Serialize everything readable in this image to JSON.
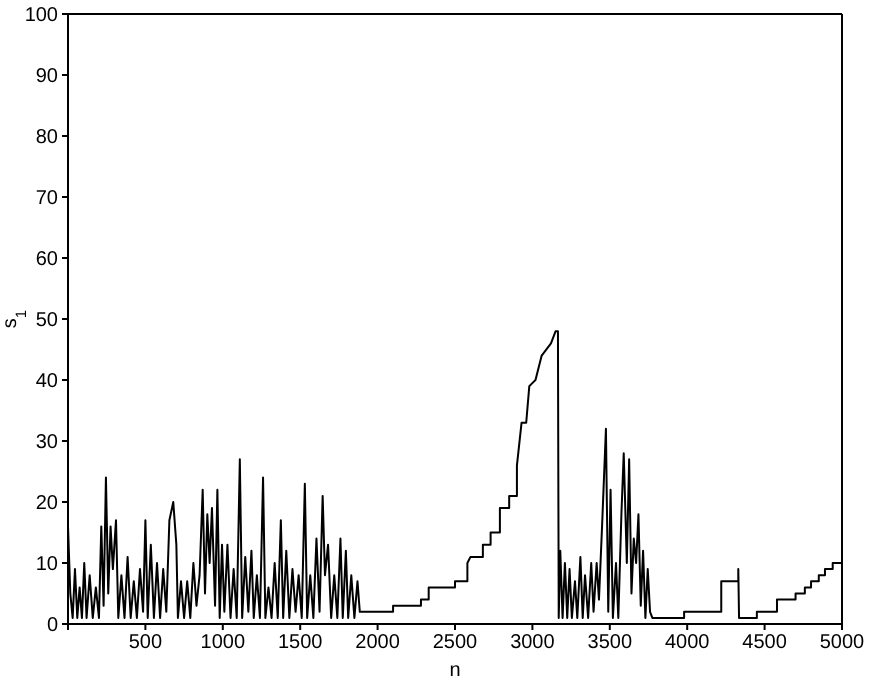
{
  "chart_data": {
    "type": "line",
    "xlabel": "n",
    "ylabel": "s$_{1}$",
    "xlim": [
      0,
      5000
    ],
    "xticks": [
      {
        "value": 0,
        "label": null
      },
      500,
      1000,
      1500,
      2000,
      2500,
      3000,
      3500,
      4000,
      4500,
      5000
    ],
    "ylim": [
      0,
      100
    ],
    "yticks": [
      0,
      10,
      20,
      30,
      40,
      50,
      60,
      70,
      80,
      90,
      100
    ],
    "marker": "none",
    "line_style": "solid",
    "series": [
      {
        "color": "#000000",
        "x": [
          0,
          15,
          30,
          45,
          60,
          75,
          90,
          105,
          120,
          140,
          160,
          180,
          200,
          215,
          230,
          245,
          260,
          275,
          290,
          310,
          325,
          345,
          365,
          385,
          405,
          425,
          445,
          465,
          485,
          500,
          515,
          535,
          555,
          575,
          595,
          615,
          635,
          655,
          680,
          700,
          710,
          730,
          750,
          770,
          790,
          810,
          830,
          850,
          870,
          885,
          900,
          915,
          930,
          950,
          965,
          980,
          995,
          1010,
          1030,
          1050,
          1070,
          1090,
          1110,
          1125,
          1145,
          1165,
          1185,
          1200,
          1220,
          1240,
          1260,
          1275,
          1295,
          1315,
          1335,
          1355,
          1375,
          1390,
          1410,
          1430,
          1450,
          1470,
          1490,
          1510,
          1530,
          1545,
          1565,
          1585,
          1605,
          1625,
          1645,
          1660,
          1680,
          1700,
          1720,
          1740,
          1760,
          1775,
          1795,
          1810,
          1830,
          1850,
          1870,
          1885,
          2100,
          2100,
          2280,
          2280,
          2330,
          2330,
          2500,
          2500,
          2580,
          2580,
          2600,
          2680,
          2680,
          2730,
          2730,
          2790,
          2790,
          2850,
          2850,
          2900,
          2900,
          2930,
          2960,
          2980,
          3020,
          3060,
          3120,
          3150,
          3165,
          3170,
          3180,
          3195,
          3210,
          3225,
          3240,
          3255,
          3275,
          3290,
          3310,
          3325,
          3340,
          3360,
          3380,
          3395,
          3415,
          3430,
          3450,
          3475,
          3490,
          3505,
          3520,
          3540,
          3555,
          3575,
          3590,
          3610,
          3625,
          3640,
          3655,
          3670,
          3685,
          3700,
          3715,
          3730,
          3745,
          3760,
          3775,
          3790,
          3980,
          3980,
          4220,
          4220,
          4330,
          4330,
          4335,
          4450,
          4450,
          4580,
          4580,
          4700,
          4700,
          4760,
          4760,
          4800,
          4800,
          4850,
          4850,
          4890,
          4890,
          4940,
          4940,
          5000
        ],
        "values": [
          16,
          5,
          1,
          9,
          1,
          6,
          1,
          10,
          1,
          8,
          1,
          6,
          1,
          16,
          3,
          24,
          5,
          16,
          9,
          17,
          1,
          8,
          1,
          11,
          1,
          7,
          1,
          9,
          2,
          17,
          1,
          13,
          1,
          10,
          1,
          9,
          2,
          17,
          20,
          13,
          1,
          7,
          1,
          7,
          1,
          10,
          3,
          8,
          22,
          5,
          18,
          10,
          19,
          3,
          22,
          1,
          13,
          2,
          13,
          1,
          9,
          1,
          27,
          1,
          11,
          2,
          12,
          1,
          8,
          1,
          24,
          1,
          6,
          1,
          10,
          1,
          17,
          1,
          12,
          1,
          9,
          2,
          8,
          1,
          23,
          1,
          8,
          1,
          14,
          2,
          21,
          8,
          13,
          1,
          8,
          1,
          14,
          1,
          12,
          1,
          8,
          1,
          7,
          2,
          2,
          3,
          3,
          4,
          4,
          6,
          6,
          7,
          7,
          10,
          11,
          11,
          13,
          13,
          15,
          15,
          19,
          19,
          21,
          21,
          26,
          33,
          33,
          39,
          40,
          44,
          46,
          48,
          48,
          1,
          12,
          1,
          10,
          1,
          9,
          1,
          7,
          1,
          11,
          1,
          8,
          1,
          10,
          2,
          10,
          4,
          16,
          32,
          2,
          22,
          1,
          10,
          1,
          18,
          28,
          10,
          27,
          5,
          14,
          10,
          18,
          3,
          12,
          1,
          9,
          2,
          1,
          1,
          1,
          2,
          2,
          7,
          7,
          9,
          1,
          1,
          2,
          2,
          4,
          4,
          5,
          5,
          6,
          6,
          7,
          7,
          8,
          8,
          9,
          9,
          10,
          10
        ]
      }
    ]
  }
}
